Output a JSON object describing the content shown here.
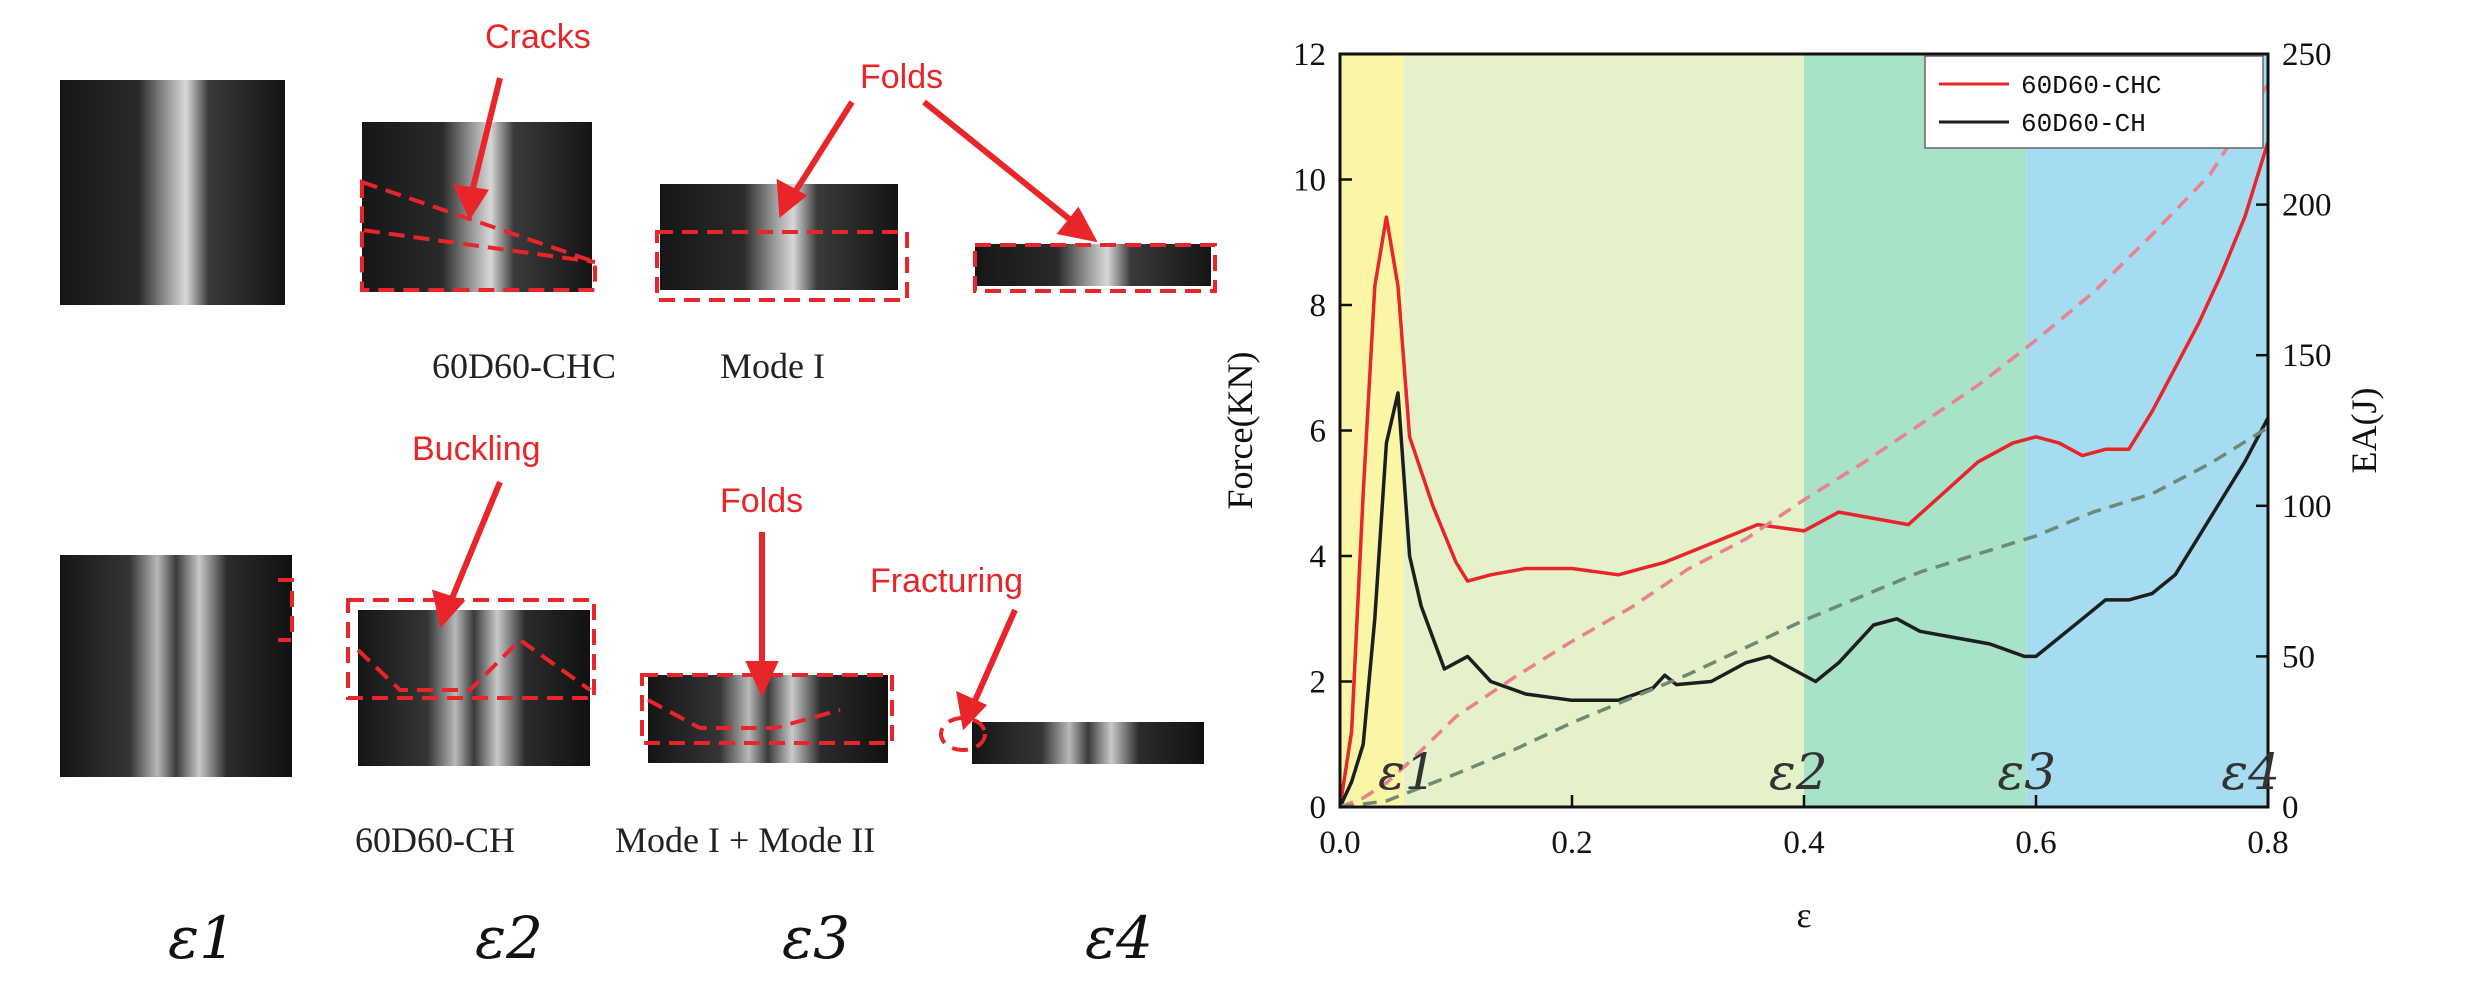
{
  "photos": {
    "labels": {
      "cracks": "Cracks",
      "folds_top": "Folds",
      "buckling": "Buckling",
      "folds_bottom": "Folds",
      "fracturing": "Fracturing"
    },
    "captions": {
      "top_specimen": "60D60-CHC",
      "top_mode": "Mode I",
      "bottom_specimen": "60D60-CH",
      "bottom_mode": "Mode I + Mode II"
    },
    "stages": [
      "ε1",
      "ε2",
      "ε3",
      "ε4"
    ]
  },
  "chart_data": {
    "type": "line",
    "xlabel": "ε",
    "ylabel": "Force(KN)",
    "ylabel_right": "EA(J)",
    "xlim": [
      0,
      0.8
    ],
    "ylim": [
      0,
      12
    ],
    "ylim_right": [
      0,
      250
    ],
    "x_ticks": [
      "0.0",
      "0.2",
      "0.4",
      "0.6",
      "0.8"
    ],
    "y_ticks": [
      "0",
      "2",
      "4",
      "6",
      "8",
      "10",
      "12"
    ],
    "y_ticks_right": [
      "0",
      "50",
      "100",
      "150",
      "200",
      "250"
    ],
    "legend_position": "top-right",
    "regions": [
      {
        "label": "ε1",
        "x": [
          0,
          0.055
        ],
        "color": "#fbf6a6"
      },
      {
        "label": "ε2",
        "x": [
          0.055,
          0.4
        ],
        "color": "#e5f1c8"
      },
      {
        "label": "ε3",
        "x": [
          0.4,
          0.592
        ],
        "color": "#a8e2c7"
      },
      {
        "label": "ε4",
        "x": [
          0.592,
          0.8
        ],
        "color": "#a5dcf1"
      }
    ],
    "series": [
      {
        "name": "60D60-CHC",
        "axis": "left",
        "color": "#e8262a",
        "style": "solid",
        "x": [
          0,
          0.01,
          0.02,
          0.03,
          0.04,
          0.05,
          0.06,
          0.08,
          0.1,
          0.11,
          0.13,
          0.16,
          0.2,
          0.24,
          0.28,
          0.32,
          0.36,
          0.4,
          0.43,
          0.46,
          0.49,
          0.52,
          0.55,
          0.58,
          0.6,
          0.62,
          0.64,
          0.66,
          0.68,
          0.7,
          0.72,
          0.74,
          0.76,
          0.78,
          0.8
        ],
        "values": [
          0,
          1.2,
          5.0,
          8.3,
          9.4,
          8.3,
          5.9,
          4.8,
          3.9,
          3.6,
          3.7,
          3.8,
          3.8,
          3.7,
          3.9,
          4.2,
          4.5,
          4.4,
          4.7,
          4.6,
          4.5,
          5.0,
          5.5,
          5.8,
          5.9,
          5.8,
          5.6,
          5.7,
          5.7,
          6.3,
          7.0,
          7.7,
          8.5,
          9.4,
          10.6
        ]
      },
      {
        "name": "60D60-CH",
        "axis": "left",
        "color": "#1e1e1e",
        "style": "solid",
        "x": [
          0,
          0.01,
          0.02,
          0.03,
          0.04,
          0.05,
          0.06,
          0.07,
          0.09,
          0.1,
          0.11,
          0.13,
          0.16,
          0.2,
          0.24,
          0.27,
          0.28,
          0.29,
          0.32,
          0.35,
          0.37,
          0.39,
          0.41,
          0.43,
          0.46,
          0.48,
          0.5,
          0.53,
          0.56,
          0.59,
          0.6,
          0.62,
          0.64,
          0.66,
          0.68,
          0.7,
          0.72,
          0.74,
          0.76,
          0.78,
          0.8
        ],
        "values": [
          0,
          0.4,
          1.0,
          3.0,
          5.8,
          6.6,
          4.0,
          3.2,
          2.2,
          2.3,
          2.4,
          2.0,
          1.8,
          1.7,
          1.7,
          1.9,
          2.1,
          1.95,
          2.0,
          2.3,
          2.4,
          2.2,
          2.0,
          2.3,
          2.9,
          3.0,
          2.8,
          2.7,
          2.6,
          2.4,
          2.4,
          2.7,
          3.0,
          3.3,
          3.3,
          3.4,
          3.7,
          4.3,
          4.9,
          5.5,
          6.2
        ]
      },
      {
        "name": "60D60-CHC EA",
        "axis": "right",
        "color": "#e8828c",
        "style": "dashed",
        "x": [
          0,
          0.02,
          0.04,
          0.06,
          0.1,
          0.15,
          0.2,
          0.25,
          0.3,
          0.35,
          0.4,
          0.45,
          0.5,
          0.55,
          0.6,
          0.65,
          0.7,
          0.75,
          0.8
        ],
        "values": [
          0,
          3,
          8,
          15,
          30,
          43,
          55,
          66,
          79,
          89,
          102,
          114,
          127,
          140,
          155,
          171,
          190,
          210,
          240
        ]
      },
      {
        "name": "60D60-CH EA",
        "axis": "right",
        "color": "#6e8a76",
        "style": "dashed",
        "x": [
          0,
          0.04,
          0.06,
          0.1,
          0.15,
          0.2,
          0.25,
          0.3,
          0.35,
          0.4,
          0.45,
          0.5,
          0.55,
          0.6,
          0.65,
          0.7,
          0.75,
          0.8
        ],
        "values": [
          0,
          2,
          5,
          11,
          19,
          28,
          36,
          44,
          53,
          62,
          70,
          78,
          84,
          90,
          98,
          104,
          114,
          126
        ]
      }
    ]
  }
}
